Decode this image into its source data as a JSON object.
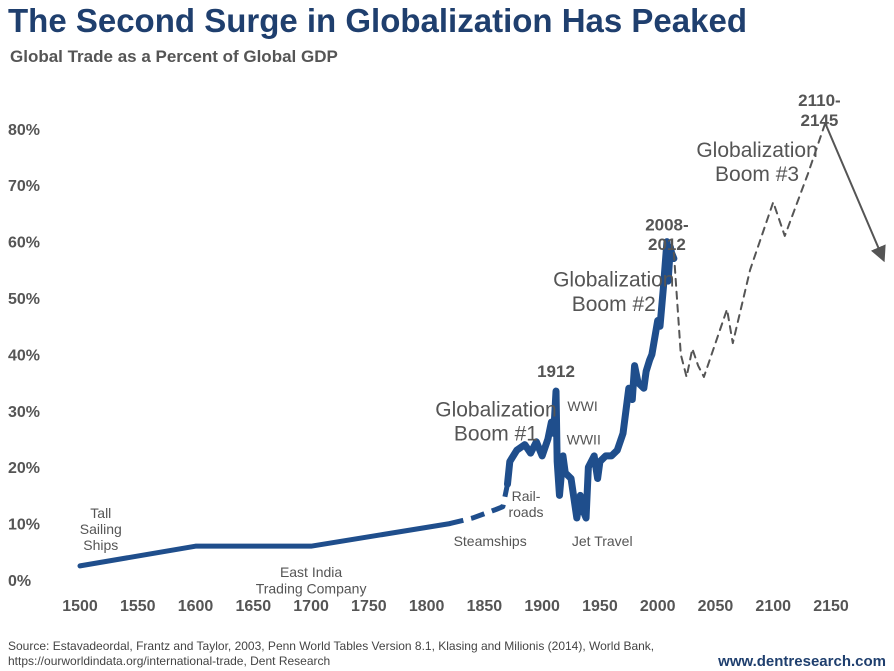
{
  "header": {
    "title": "The Second Surge in Globalization Has Peaked",
    "subtitle": "Global Trade as a Percent of Global GDP"
  },
  "footer": {
    "source_line1": "Source: Estavadeordal, Frantz and Taylor, 2003, Penn World Tables Version 8.1, Klasing and Milionis (2014), World Bank,",
    "source_line2": "https://ourworldindata.org/international-trade, Dent Research",
    "website": "www.dentresearch.com"
  },
  "chart_data": {
    "type": "line",
    "title": "The Second Surge in Globalization Has Peaked",
    "subtitle": "Global Trade as a Percent of Global GDP",
    "xlim": [
      1500,
      2150
    ],
    "ylim": [
      0,
      80
    ],
    "x_ticks": [
      "1500",
      "1550",
      "1600",
      "1650",
      "1700",
      "1750",
      "1800",
      "1850",
      "1900",
      "1950",
      "2000",
      "2050",
      "2100",
      "2150"
    ],
    "y_ticks": [
      "0%",
      "10%",
      "20%",
      "30%",
      "40%",
      "50%",
      "60%",
      "70%",
      "80%"
    ],
    "grid": false,
    "colors": {
      "historical": "#1f4e8c",
      "forecast": "#555555",
      "labels": "#555555",
      "title": "#1f3f6e"
    },
    "series": [
      {
        "style": "solid",
        "x": [
          1500,
          1600,
          1700,
          1820
        ],
        "y": [
          2.5,
          6,
          6,
          10
        ]
      },
      {
        "style": "dashed",
        "x": [
          1820,
          1840,
          1860,
          1866,
          1870
        ],
        "y": [
          10,
          11,
          12.5,
          13,
          17
        ]
      },
      {
        "style": "solid-thick",
        "x": [
          1870,
          1872,
          1878,
          1885,
          1890,
          1895,
          1900,
          1905,
          1908,
          1910,
          1912,
          1913,
          1915,
          1918,
          1920,
          1925,
          1930,
          1933,
          1936,
          1938,
          1940,
          1945,
          1948,
          1950,
          1955,
          1960,
          1965,
          1970,
          1975,
          1978,
          1980,
          1983,
          1988,
          1990,
          1993,
          1995,
          2000,
          2002,
          2005,
          2008,
          2009,
          2011,
          2012,
          2014
        ],
        "y": [
          17,
          21,
          23,
          24,
          22.5,
          24.5,
          22,
          25,
          28,
          26,
          33.5,
          21,
          15,
          22,
          19,
          18,
          11,
          15,
          12,
          11,
          20,
          22,
          18,
          21,
          22,
          22,
          23,
          26,
          34,
          32,
          38,
          35,
          34,
          37,
          39,
          40,
          46,
          45,
          52,
          60,
          53,
          59,
          58,
          57
        ]
      },
      {
        "style": "dashed-forecast",
        "x": [
          2014,
          2020,
          2025,
          2030,
          2035,
          2040,
          2050,
          2060,
          2065,
          2080,
          2100,
          2110,
          2130,
          2145
        ],
        "y": [
          58,
          40,
          36,
          41,
          38,
          36,
          42,
          48,
          42,
          55,
          67,
          61,
          72,
          81
        ]
      },
      {
        "style": "arrow",
        "x": [
          2145,
          2195
        ],
        "y": [
          81,
          57
        ]
      }
    ],
    "annotations": [
      {
        "text": "Tall\nSailing\nShips",
        "x": 1518,
        "y": 11
      },
      {
        "text": "East India\nTrading Company",
        "x": 1700,
        "y": 0.5
      },
      {
        "text": "Steamships",
        "x": 1855,
        "y": 6
      },
      {
        "text": "Rail-\nroads",
        "x": 1886,
        "y": 14
      },
      {
        "text": "Jet Travel",
        "x": 1952,
        "y": 6
      },
      {
        "text": "WWI",
        "x": 1935,
        "y": 30
      },
      {
        "text": "WWII",
        "x": 1936,
        "y": 24
      },
      {
        "text": "1912",
        "x": 1912,
        "y": 36,
        "bold": true
      },
      {
        "text": "Globalization\nBoom #1",
        "x": 1860,
        "y": 29,
        "large": true
      },
      {
        "text": "Globalization\nBoom #2",
        "x": 1962,
        "y": 52,
        "large": true
      },
      {
        "text": "2008-\n2012",
        "x": 2008,
        "y": 62,
        "bold": true
      },
      {
        "text": "Globalization\nBoom #3",
        "x": 2086,
        "y": 75,
        "large": true
      },
      {
        "text": "2110-\n2145",
        "x": 2140,
        "y": 84,
        "bold": true
      }
    ]
  }
}
